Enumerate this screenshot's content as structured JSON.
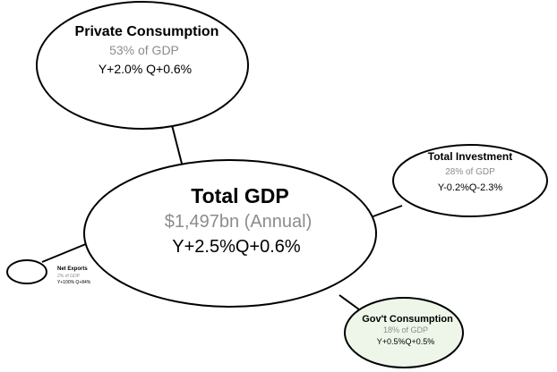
{
  "colors": {
    "stroke": "#000000",
    "fill_default": "#ffffff",
    "fill_govt": "#eef6ea",
    "subtitle_grey": "#8c8c8c"
  },
  "total": {
    "title": "Total GDP",
    "subtitle": "$1,497bn (Annual)",
    "growth": "Y+2.5%Q+0.6%"
  },
  "private_consumption": {
    "title": "Private Consumption",
    "share": "53% of GDP",
    "growth": "Y+2.0% Q+0.6%"
  },
  "total_investment": {
    "title": "Total Investment",
    "share": "28% of GDP",
    "growth": "Y-0.2%Q-2.3%"
  },
  "govt_consumption": {
    "title": "Gov't Consumption",
    "share": "18% of GDP",
    "growth": "Y+0.5%Q+0.5%"
  },
  "net_exports": {
    "title": "Net Exports",
    "share": "2% of GDP",
    "growth": "Y+100% Q+84%"
  }
}
